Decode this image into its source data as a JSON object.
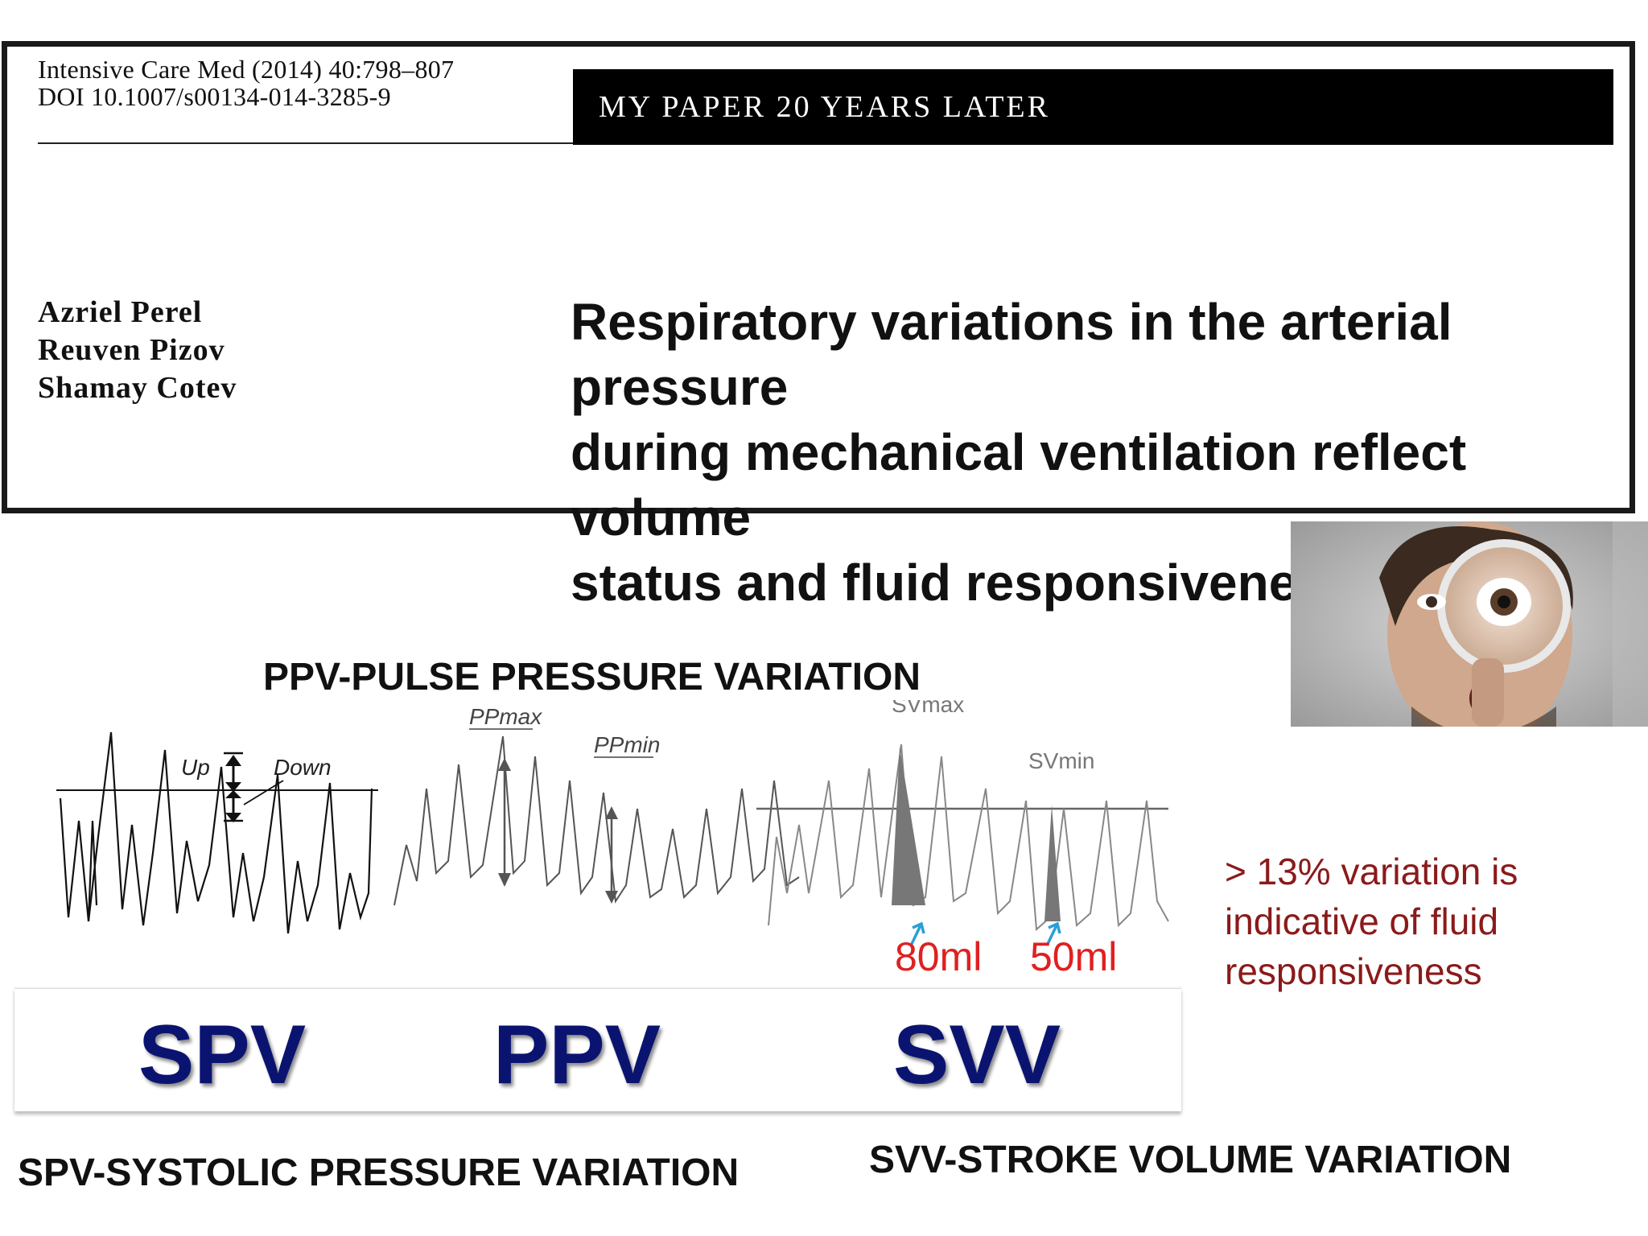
{
  "paper": {
    "journal_citation": "Intensive Care Med (2014) 40:798–807",
    "doi": "DOI 10.1007/s00134-014-3285-9",
    "section_banner": "MY PAPER 20 YEARS LATER",
    "authors": [
      "Azriel Perel",
      "Reuven Pizov",
      "Shamay Cotev"
    ],
    "title_lines": [
      "Respiratory variations in the arterial pressure",
      "during mechanical ventilation reflect volume",
      "status and fluid responsiveness"
    ]
  },
  "waveform_labels": {
    "up": "Up",
    "down": "Down",
    "ppmax": "PPmax",
    "ppmin": "PPmin",
    "svmax": "SVmax",
    "svmin": "SVmin"
  },
  "headings": {
    "ppv_definition": "PPV-PULSE PRESSURE VARIATION",
    "spv_definition": "SPV-SYSTOLIC PRESSURE VARIATION",
    "svv_definition": "SVV-STROKE VOLUME VARIATION"
  },
  "volumes": {
    "max_volume": "80ml",
    "min_volume": "50ml"
  },
  "acronyms": {
    "spv": "SPV",
    "ppv": "PPV",
    "svv": "SVV"
  },
  "note_lines": [
    "> 13% variation is",
    "indicative of fluid",
    "responsiveness"
  ],
  "photo": {
    "icon": "man-with-magnifying-glass-photo"
  },
  "colors": {
    "acronym_navy": "#0a1470",
    "volume_red": "#e02020",
    "note_dark_red": "#8b1a1a",
    "arrow_blue": "#2a9fd6",
    "banner_black": "#000000"
  }
}
